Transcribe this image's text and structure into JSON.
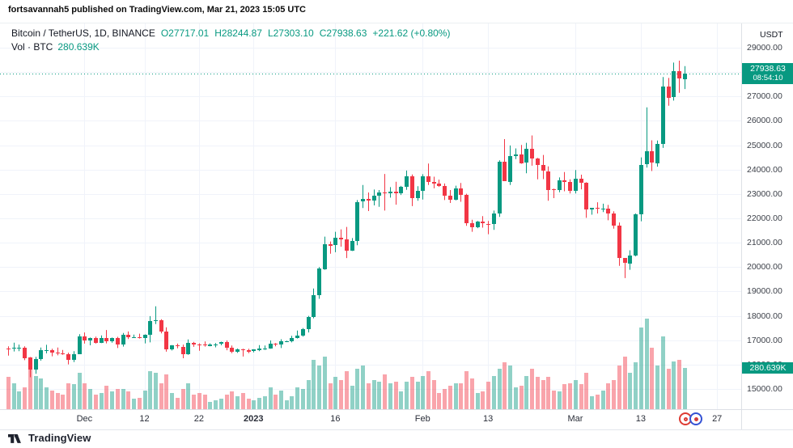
{
  "attribution": {
    "text": "fortsavannah5 published on TradingView.com, Mar 21, 2023 15:05 UTC"
  },
  "legend": {
    "symbol": "Bitcoin / TetherUS, 1D, BINANCE",
    "open": "O27717.01",
    "high": "H28244.87",
    "low": "L27303.10",
    "close": "C27938.63",
    "change": "+221.62 (+0.80%)"
  },
  "volume_row": {
    "label": "Vol · BTC",
    "value": "280.639K"
  },
  "price_scale": {
    "currency": "USDT",
    "ticks": [
      "29000.00",
      "28000.00",
      "27000.00",
      "26000.00",
      "25000.00",
      "24000.00",
      "23000.00",
      "22000.00",
      "21000.00",
      "20000.00",
      "19000.00",
      "18000.00",
      "17000.00",
      "16000.00",
      "15000.00"
    ],
    "price_badge": {
      "price": "27938.63",
      "countdown": "08:54:10"
    },
    "volume_badge": "280.639K"
  },
  "time_scale": {
    "labels": [
      {
        "text": "Dec",
        "i": 14,
        "bold": false
      },
      {
        "text": "12",
        "i": 25,
        "bold": false
      },
      {
        "text": "22",
        "i": 35,
        "bold": false
      },
      {
        "text": "2023",
        "i": 45,
        "bold": true
      },
      {
        "text": "16",
        "i": 60,
        "bold": false
      },
      {
        "text": "Feb",
        "i": 76,
        "bold": false
      },
      {
        "text": "13",
        "i": 88,
        "bold": false
      },
      {
        "text": "Mar",
        "i": 104,
        "bold": false
      },
      {
        "text": "13",
        "i": 116,
        "bold": false
      },
      {
        "text": "27",
        "i": 130,
        "bold": false
      }
    ]
  },
  "footer": {
    "logo_text": "TradingView"
  },
  "colors": {
    "up": "#089981",
    "down": "#f23645",
    "vol_up": "rgba(8,153,129,0.45)",
    "vol_down": "rgba(242,54,69,0.45)",
    "grid": "#f0f3fa",
    "badge": "#089981",
    "legend_green": "#089981"
  },
  "chart_data": {
    "type": "candlestick",
    "title": "Bitcoin / TetherUS, 1D, BINANCE",
    "ylabel": "USDT",
    "interval": "1D",
    "start_date": "2022-11-17",
    "end_date": "2023-03-21",
    "y_range_visible": [
      15000,
      29000
    ],
    "grid": true,
    "ohlcv_fields": [
      "open",
      "high",
      "low",
      "close",
      "volume_kBTC"
    ],
    "last_values": {
      "open": 27717.01,
      "high": 28244.87,
      "low": 27303.1,
      "close": 27938.63,
      "change": "+221.62 (+0.80%)",
      "volume": "280.639K"
    },
    "candles": [
      [
        16670,
        16750,
        16370,
        16650,
        220
      ],
      [
        16650,
        16900,
        16540,
        16690,
        180
      ],
      [
        16690,
        16820,
        16550,
        16700,
        120
      ],
      [
        16700,
        16750,
        16180,
        16280,
        150
      ],
      [
        16280,
        16310,
        15480,
        15780,
        280
      ],
      [
        15780,
        16320,
        15620,
        16220,
        230
      ],
      [
        16220,
        16700,
        16160,
        16600,
        210
      ],
      [
        16600,
        16810,
        16460,
        16600,
        150
      ],
      [
        16600,
        16650,
        16340,
        16500,
        130
      ],
      [
        16500,
        16700,
        16380,
        16460,
        110
      ],
      [
        16460,
        16600,
        16400,
        16440,
        100
      ],
      [
        16440,
        16490,
        16010,
        16210,
        180
      ],
      [
        16210,
        16550,
        16100,
        16440,
        170
      ],
      [
        16440,
        17250,
        16430,
        17160,
        250
      ],
      [
        17160,
        17320,
        16860,
        16980,
        180
      ],
      [
        16980,
        17110,
        16790,
        17090,
        140
      ],
      [
        17090,
        17150,
        16860,
        16890,
        100
      ],
      [
        16890,
        17200,
        16880,
        17100,
        110
      ],
      [
        17100,
        17420,
        16870,
        16970,
        160
      ],
      [
        16970,
        17110,
        16900,
        17090,
        120
      ],
      [
        17090,
        17140,
        16680,
        16840,
        140
      ],
      [
        16840,
        17300,
        16740,
        17230,
        140
      ],
      [
        17230,
        17360,
        17050,
        17130,
        120
      ],
      [
        17130,
        17230,
        17100,
        17130,
        70
      ],
      [
        17130,
        17270,
        17070,
        17090,
        80
      ],
      [
        17090,
        17240,
        16870,
        17210,
        130
      ],
      [
        17210,
        17990,
        16910,
        17780,
        260
      ],
      [
        17780,
        18390,
        17660,
        17810,
        250
      ],
      [
        17810,
        17860,
        17280,
        17360,
        180
      ],
      [
        17360,
        17530,
        16530,
        16630,
        240
      ],
      [
        16630,
        16800,
        16580,
        16780,
        110
      ],
      [
        16780,
        16860,
        16670,
        16740,
        80
      ],
      [
        16740,
        16820,
        16260,
        16440,
        140
      ],
      [
        16440,
        17030,
        16400,
        16900,
        180
      ],
      [
        16900,
        16930,
        16730,
        16830,
        100
      ],
      [
        16830,
        16870,
        16570,
        16820,
        110
      ],
      [
        16820,
        16950,
        16740,
        16780,
        100
      ],
      [
        16780,
        16870,
        16750,
        16840,
        50
      ],
      [
        16840,
        16880,
        16710,
        16840,
        60
      ],
      [
        16840,
        16940,
        16790,
        16920,
        70
      ],
      [
        16920,
        16990,
        16590,
        16700,
        100
      ],
      [
        16700,
        16780,
        16470,
        16540,
        120
      ],
      [
        16540,
        16660,
        16480,
        16630,
        90
      ],
      [
        16630,
        16650,
        16330,
        16600,
        110
      ],
      [
        16600,
        16650,
        16470,
        16540,
        70
      ],
      [
        16540,
        16630,
        16500,
        16620,
        60
      ],
      [
        16620,
        16800,
        16550,
        16670,
        80
      ],
      [
        16670,
        16780,
        16600,
        16670,
        90
      ],
      [
        16670,
        16990,
        16650,
        16860,
        150
      ],
      [
        16860,
        16880,
        16750,
        16830,
        100
      ],
      [
        16830,
        17040,
        16680,
        16950,
        130
      ],
      [
        16950,
        16980,
        16920,
        16950,
        60
      ],
      [
        16950,
        17180,
        16910,
        17090,
        90
      ],
      [
        17090,
        17400,
        17070,
        17180,
        150
      ],
      [
        17180,
        17500,
        17150,
        17440,
        140
      ],
      [
        17440,
        18000,
        17320,
        17940,
        200
      ],
      [
        17940,
        19120,
        17900,
        18850,
        340
      ],
      [
        18850,
        20000,
        18700,
        19930,
        300
      ],
      [
        19930,
        21250,
        19890,
        20950,
        360
      ],
      [
        20950,
        21050,
        20550,
        20880,
        180
      ],
      [
        20880,
        21450,
        20610,
        21190,
        220
      ],
      [
        21190,
        21550,
        20840,
        21140,
        200
      ],
      [
        21140,
        21650,
        20370,
        20680,
        260
      ],
      [
        20680,
        21190,
        20660,
        21080,
        160
      ],
      [
        21080,
        22750,
        20900,
        22670,
        280
      ],
      [
        22670,
        23370,
        22420,
        22780,
        300
      ],
      [
        22780,
        23060,
        22300,
        22710,
        180
      ],
      [
        22710,
        23180,
        22530,
        22920,
        200
      ],
      [
        22920,
        23160,
        22470,
        23060,
        190
      ],
      [
        23060,
        23820,
        22320,
        23020,
        240
      ],
      [
        23020,
        23280,
        22850,
        23080,
        180
      ],
      [
        23080,
        23500,
        22560,
        23020,
        190
      ],
      [
        23020,
        23330,
        22960,
        23300,
        120
      ],
      [
        23300,
        23960,
        23170,
        23740,
        190
      ],
      [
        23740,
        23800,
        22500,
        22840,
        220
      ],
      [
        22840,
        23320,
        22720,
        23130,
        190
      ],
      [
        23130,
        23810,
        22770,
        23720,
        230
      ],
      [
        23720,
        24250,
        23370,
        23490,
        260
      ],
      [
        23490,
        23710,
        23230,
        23430,
        200
      ],
      [
        23430,
        23590,
        23290,
        23330,
        110
      ],
      [
        23330,
        23430,
        22750,
        22930,
        140
      ],
      [
        22930,
        23160,
        22630,
        22760,
        160
      ],
      [
        22760,
        23340,
        22740,
        23240,
        180
      ],
      [
        23240,
        23450,
        22680,
        22960,
        180
      ],
      [
        22960,
        23010,
        21690,
        21790,
        260
      ],
      [
        21790,
        21940,
        21450,
        21630,
        210
      ],
      [
        21630,
        21890,
        21600,
        21860,
        110
      ],
      [
        21860,
        22090,
        21620,
        21780,
        120
      ],
      [
        21780,
        21890,
        21350,
        21770,
        190
      ],
      [
        21770,
        22320,
        21530,
        22200,
        230
      ],
      [
        22200,
        24380,
        22060,
        24320,
        280
      ],
      [
        24320,
        25250,
        23530,
        23520,
        320
      ],
      [
        23520,
        24990,
        23370,
        24570,
        300
      ],
      [
        24570,
        24870,
        24430,
        24630,
        150
      ],
      [
        24630,
        25010,
        24240,
        24270,
        160
      ],
      [
        24270,
        25100,
        23850,
        24840,
        230
      ],
      [
        24840,
        25400,
        24160,
        24450,
        280
      ],
      [
        24450,
        24480,
        23600,
        24180,
        220
      ],
      [
        24180,
        24600,
        23610,
        23940,
        200
      ],
      [
        23940,
        24130,
        22720,
        23180,
        220
      ],
      [
        23180,
        23220,
        22830,
        23160,
        130
      ],
      [
        23160,
        23680,
        23070,
        23550,
        120
      ],
      [
        23550,
        23900,
        23110,
        23490,
        170
      ],
      [
        23490,
        23600,
        23020,
        23130,
        180
      ],
      [
        23130,
        23980,
        23020,
        23640,
        200
      ],
      [
        23640,
        23790,
        23190,
        23460,
        170
      ],
      [
        23460,
        23480,
        22020,
        22350,
        250
      ],
      [
        22350,
        22410,
        22150,
        22430,
        90
      ],
      [
        22430,
        22660,
        22200,
        22410,
        100
      ],
      [
        22410,
        22600,
        22260,
        22410,
        130
      ],
      [
        22410,
        22550,
        21920,
        22200,
        180
      ],
      [
        22200,
        22290,
        21580,
        21700,
        200
      ],
      [
        21700,
        21830,
        20050,
        20360,
        300
      ],
      [
        20360,
        20370,
        19550,
        20150,
        360
      ],
      [
        20150,
        20690,
        19890,
        20470,
        250
      ],
      [
        20470,
        22200,
        20440,
        22160,
        320
      ],
      [
        22160,
        24500,
        21880,
        24200,
        560
      ],
      [
        24200,
        26550,
        24080,
        24740,
        620
      ],
      [
        24740,
        25200,
        23940,
        24280,
        420
      ],
      [
        24280,
        25190,
        24120,
        25060,
        300
      ],
      [
        25060,
        27800,
        24890,
        27420,
        500
      ],
      [
        27420,
        27760,
        26620,
        26960,
        280
      ],
      [
        26960,
        28390,
        26830,
        28030,
        330
      ],
      [
        28030,
        28470,
        27150,
        27720,
        340
      ],
      [
        27717.01,
        28244.87,
        27303.1,
        27938.63,
        280.639
      ]
    ]
  }
}
